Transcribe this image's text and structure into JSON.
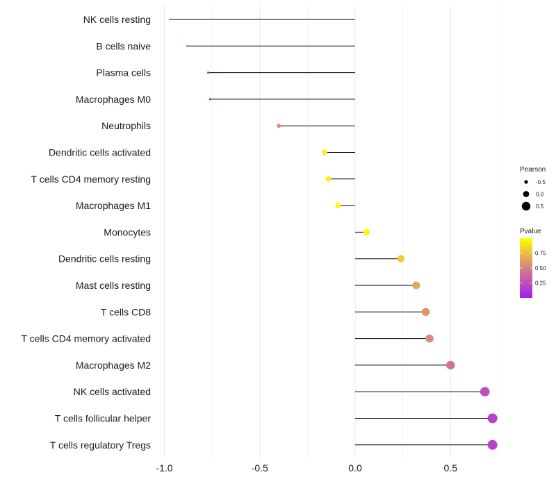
{
  "chart_data": {
    "type": "lollipop",
    "title": "",
    "xlabel": "",
    "ylabel": "",
    "xlim": [
      -1.0,
      0.75
    ],
    "xticks": [
      -1.0,
      -0.5,
      0.0,
      0.5
    ],
    "xtick_labels": [
      "-1.0",
      "-0.5",
      "0.0",
      "0.5"
    ],
    "grid": true,
    "legend_position": "right",
    "categories": [
      "NK cells resting",
      "B cells naive",
      "Plasma cells",
      "Macrophages M0",
      "Neutrophils",
      "Dendritic cells activated",
      "T cells CD4 memory resting",
      "Macrophages M1",
      "Monocytes",
      "Dendritic cells resting",
      "Mast cells resting",
      "T cells CD8",
      "T cells CD4 memory activated",
      "Macrophages M2",
      "NK cells activated",
      "T cells follicular helper",
      "T cells regulatory  Tregs"
    ],
    "pearson": [
      -0.97,
      -0.88,
      -0.77,
      -0.76,
      -0.4,
      -0.16,
      -0.14,
      -0.09,
      0.06,
      0.24,
      0.32,
      0.37,
      0.39,
      0.5,
      0.68,
      0.72,
      0.72
    ],
    "pvalue": [
      0.02,
      0.02,
      0.12,
      0.12,
      0.55,
      0.95,
      0.95,
      0.98,
      0.98,
      0.8,
      0.65,
      0.58,
      0.55,
      0.42,
      0.25,
      0.18,
      0.18
    ],
    "size_legend": {
      "title": "Pearson",
      "values": [
        -0.5,
        0.0,
        0.5
      ],
      "labels": [
        "-0.5",
        "0.0",
        "0.5"
      ]
    },
    "color_legend": {
      "title": "Pvalue",
      "range": [
        0.0,
        1.0
      ],
      "ticks": [
        0.25,
        0.5,
        0.75
      ],
      "tick_labels": [
        "0.25",
        "0.50",
        "0.75"
      ],
      "low_color": "#a020f0",
      "mid_color": "#d98080",
      "high_color": "#ffff00"
    },
    "stem_color": "#000000",
    "grid_color": "#ebebeb"
  }
}
